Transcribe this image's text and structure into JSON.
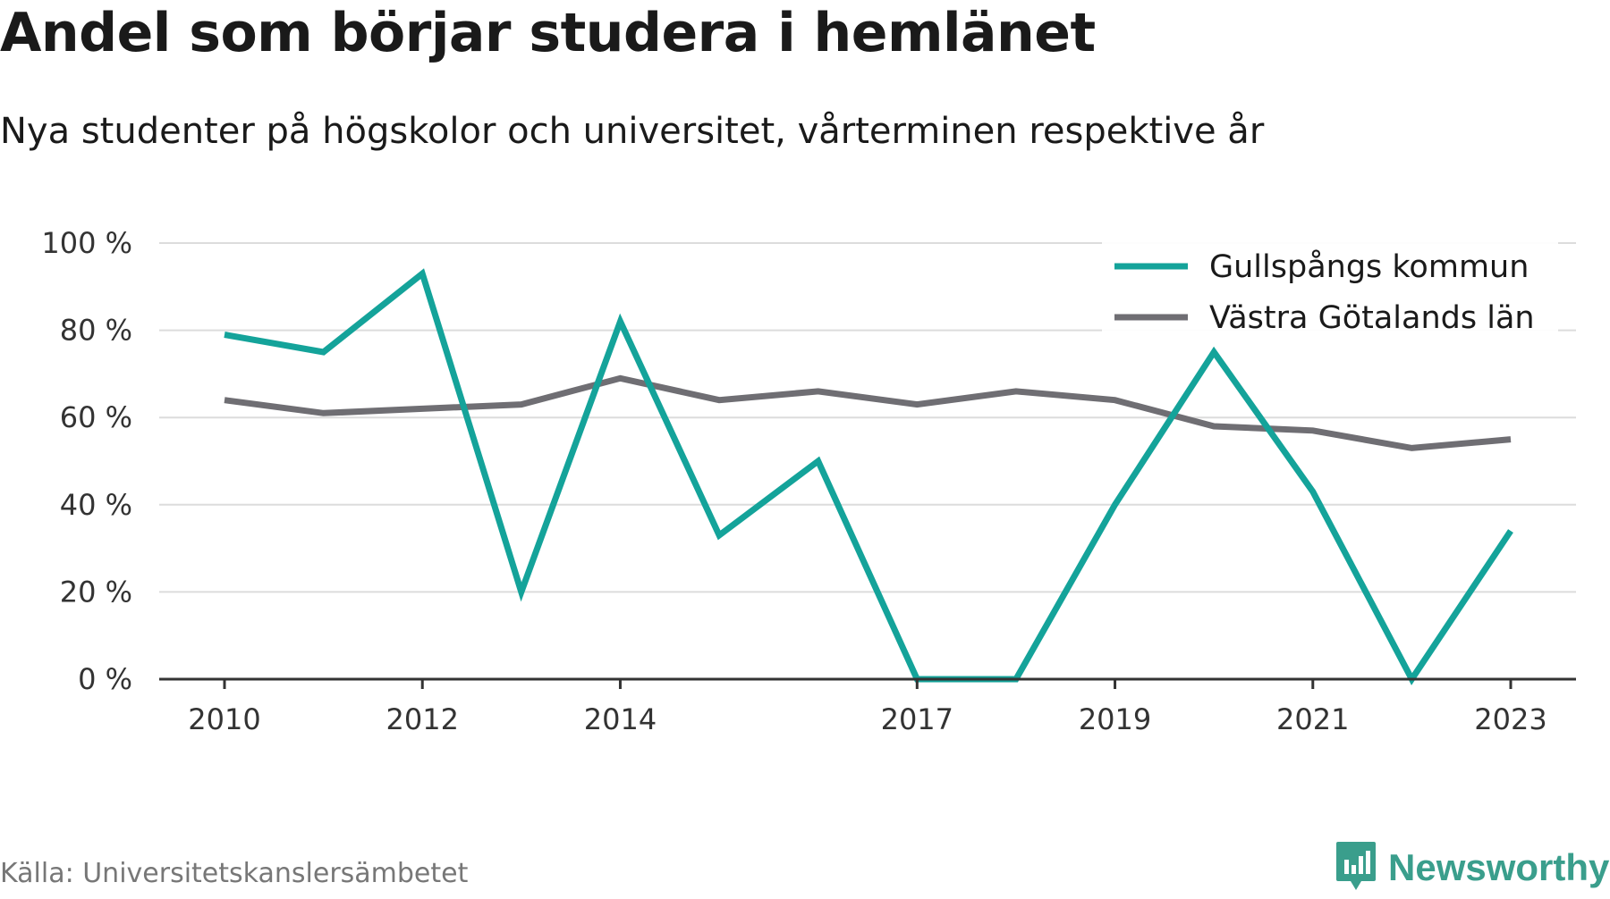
{
  "title": "Andel som börjar studera i hemlänet",
  "subtitle": "Nya studenter på högskolor och universitet, vårterminen respektive år",
  "source": "Källa: Universitetskanslersämbetet",
  "brand": {
    "name": "Newsworthy",
    "icon": "newsworthy-logo-icon",
    "color": "#3a9e8c"
  },
  "chart_data": {
    "type": "line",
    "x": [
      2010,
      2011,
      2012,
      2013,
      2014,
      2015,
      2016,
      2017,
      2018,
      2019,
      2020,
      2021,
      2022,
      2023
    ],
    "x_ticks": [
      2010,
      2012,
      2014,
      2017,
      2019,
      2021,
      2023
    ],
    "y_ticks": [
      0,
      20,
      40,
      60,
      80,
      100
    ],
    "y_tick_labels": [
      "0 %",
      "20 %",
      "40 %",
      "60 %",
      "80 %",
      "100 %"
    ],
    "ylim": [
      0,
      100
    ],
    "grid": true,
    "legend_position": "top-right",
    "series": [
      {
        "name": "Gullspångs kommun",
        "color": "#14a39a",
        "values": [
          79,
          75,
          93,
          20,
          82,
          33,
          50,
          0,
          0,
          40,
          75,
          43,
          0,
          34
        ]
      },
      {
        "name": "Västra Götalands län",
        "color": "#6f6e73",
        "values": [
          64,
          61,
          62,
          63,
          69,
          64,
          66,
          63,
          66,
          64,
          58,
          57,
          53,
          55
        ]
      }
    ]
  }
}
